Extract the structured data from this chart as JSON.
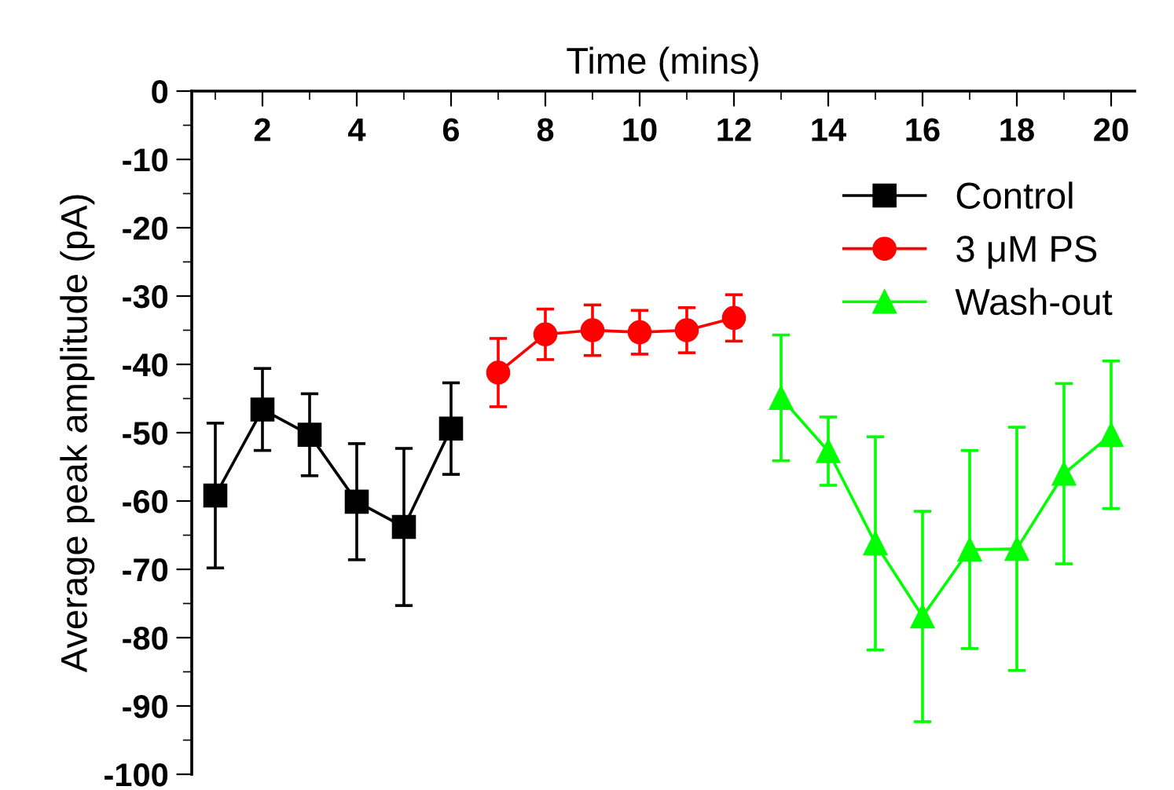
{
  "chart_data": {
    "type": "line",
    "xlabel": "Time (mins)",
    "ylabel": "Average peak amplitude (pA)",
    "xlim": [
      0.5,
      20.5
    ],
    "xticks": [
      2,
      4,
      6,
      8,
      10,
      12,
      14,
      16,
      18,
      20
    ],
    "ylim": [
      -100,
      0
    ],
    "yticks": [
      -100,
      -90,
      -80,
      -70,
      -60,
      -50,
      -40,
      -30,
      -20,
      -10,
      0
    ],
    "grid": false,
    "legend": "top right",
    "line_style": "solid",
    "series": [
      {
        "name": "Control",
        "color": "#000000",
        "marker": "square",
        "x": [
          1,
          2,
          3,
          4,
          5,
          6
        ],
        "values": [
          -59.2,
          -46.6,
          -50.3,
          -60.1,
          -63.8,
          -49.4
        ],
        "errors": [
          10.6,
          6,
          6,
          8.5,
          11.5,
          6.7
        ]
      },
      {
        "name": "3 μM PS",
        "color": "#ff0000",
        "marker": "circle",
        "x": [
          7,
          8,
          9,
          10,
          11,
          12
        ],
        "values": [
          -41.2,
          -35.6,
          -35.0,
          -35.3,
          -35.0,
          -33.2
        ],
        "errors": [
          5,
          3.7,
          3.7,
          3.2,
          3.3,
          3.4
        ]
      },
      {
        "name": "Wash-out",
        "color": "#00ff00",
        "marker": "triangle",
        "x": [
          13,
          14,
          15,
          16,
          17,
          18,
          19,
          20
        ],
        "values": [
          -44.9,
          -52.7,
          -66.2,
          -76.9,
          -67.1,
          -67.0,
          -56.0,
          -50.3
        ],
        "errors": [
          9.2,
          5,
          15.6,
          15.4,
          14.5,
          17.8,
          13.2,
          10.8
        ]
      }
    ]
  }
}
